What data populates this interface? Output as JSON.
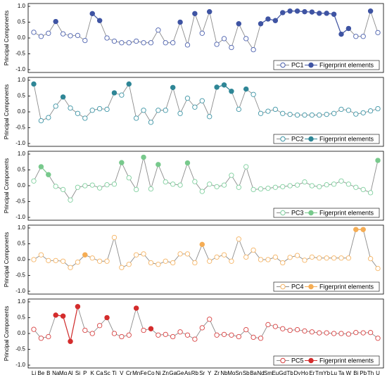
{
  "chart_data": [
    {
      "type": "line",
      "y_label": "Principal Components",
      "ylim": [
        -1,
        1
      ],
      "yticks": [
        {
          "value": -1,
          "label": "-1.0"
        },
        {
          "value": -0.5,
          "label": "-0.5"
        },
        {
          "value": 0,
          "label": "0.0"
        },
        {
          "value": 0.5,
          "label": "0.5"
        },
        {
          "value": 1,
          "label": "1.0"
        }
      ],
      "legend": "lower right",
      "series": [
        {
          "name": "PC1",
          "color": "#4a5fae",
          "values": [
            0.18,
            0.05,
            0.15,
            0.52,
            0.13,
            0.07,
            0.08,
            -0.08,
            0.77,
            0.55,
            0,
            -0.1,
            -0.15,
            -0.15,
            -0.1,
            -0.15,
            -0.15,
            0.25,
            -0.15,
            -0.15,
            0.5,
            -0.22,
            0.77,
            0.15,
            0.83,
            -0.2,
            -0.02,
            -0.3,
            0.45,
            -0.02,
            -0.37,
            0.45,
            0.6,
            0.55,
            0.8,
            0.85,
            0.85,
            0.83,
            0.82,
            0.78,
            0.78,
            0.75,
            0.12,
            0.3,
            0.05,
            0.05,
            0.85,
            0.17
          ]
        },
        {
          "name": "Figerprint elements",
          "color": "#3f54a3",
          "values": [
            null,
            null,
            null,
            0.52,
            null,
            null,
            null,
            null,
            0.77,
            0.55,
            null,
            null,
            null,
            null,
            null,
            null,
            null,
            null,
            null,
            null,
            0.5,
            null,
            0.77,
            null,
            0.83,
            null,
            null,
            null,
            0.45,
            null,
            null,
            0.45,
            0.6,
            0.55,
            0.8,
            0.85,
            0.85,
            0.83,
            0.82,
            0.78,
            0.78,
            0.75,
            0.12,
            0.3,
            null,
            null,
            0.85,
            null
          ]
        }
      ]
    },
    {
      "type": "line",
      "y_label": "Principal Components",
      "ylim": [
        -1,
        1
      ],
      "yticks": [
        {
          "value": -1,
          "label": "-1.0"
        },
        {
          "value": -0.5,
          "label": "-0.5"
        },
        {
          "value": 0,
          "label": "0.0"
        },
        {
          "value": 0.5,
          "label": "0.5"
        },
        {
          "value": 1,
          "label": "1.0"
        }
      ],
      "legend": "lower right",
      "series": [
        {
          "name": "PC2",
          "color": "#3d95a6",
          "values": [
            0.88,
            -0.28,
            -0.18,
            0.18,
            0.47,
            0.12,
            -0.05,
            -0.2,
            0.05,
            0.1,
            0.08,
            0.6,
            0.53,
            0.88,
            -0.2,
            0.05,
            -0.33,
            0.05,
            0.05,
            0.77,
            -0.05,
            0.43,
            0.15,
            0.35,
            -0.15,
            0.78,
            0.85,
            0.65,
            0.08,
            0.72,
            0.55,
            -0.05,
            0.02,
            0.08,
            -0.05,
            -0.08,
            -0.1,
            -0.1,
            -0.1,
            -0.1,
            -0.08,
            -0.05,
            0.08,
            0.05,
            -0.07,
            -0.03,
            0.03,
            0.1
          ]
        },
        {
          "name": "Figerprint elements",
          "color": "#2f8696",
          "values": [
            0.88,
            null,
            null,
            null,
            0.47,
            null,
            null,
            null,
            null,
            null,
            null,
            0.6,
            null,
            0.88,
            null,
            null,
            null,
            null,
            null,
            0.77,
            null,
            null,
            null,
            null,
            null,
            0.78,
            0.85,
            0.65,
            null,
            0.72,
            null,
            null,
            null,
            null,
            null,
            null,
            null,
            null,
            null,
            null,
            null,
            null,
            null,
            null,
            null,
            null,
            null,
            null
          ]
        }
      ]
    },
    {
      "type": "line",
      "y_label": "Principal Components",
      "ylim": [
        -1,
        1
      ],
      "yticks": [
        {
          "value": -1,
          "label": "-1.0"
        },
        {
          "value": -0.5,
          "label": "-0.5"
        },
        {
          "value": 0,
          "label": "0.0"
        },
        {
          "value": 0.5,
          "label": "0.5"
        },
        {
          "value": 1,
          "label": "1.0"
        }
      ],
      "legend": "lower right",
      "series": [
        {
          "name": "PC3",
          "color": "#7fcf9e",
          "values": [
            0.15,
            0.6,
            0.35,
            -0.02,
            -0.12,
            -0.45,
            -0.05,
            0,
            0.02,
            -0.07,
            0.03,
            0.05,
            0.73,
            0.25,
            -0.12,
            0.9,
            -0.1,
            0.67,
            0.12,
            0.05,
            0.02,
            0.72,
            0.13,
            -0.18,
            0.05,
            -0.03,
            0.02,
            0.33,
            -0.05,
            0.6,
            -0.12,
            -0.1,
            -0.08,
            -0.05,
            -0.03,
            0,
            0.02,
            0.12,
            0,
            -0.03,
            0.03,
            0.05,
            0.15,
            0.05,
            -0.05,
            -0.12,
            -0.22,
            0.8
          ]
        },
        {
          "name": "Figerprint elements",
          "color": "#78c98c",
          "values": [
            null,
            0.6,
            0.35,
            null,
            null,
            null,
            null,
            null,
            null,
            null,
            null,
            null,
            0.73,
            null,
            null,
            0.9,
            null,
            0.67,
            null,
            null,
            null,
            0.72,
            null,
            null,
            null,
            null,
            null,
            null,
            null,
            null,
            null,
            null,
            null,
            null,
            null,
            null,
            null,
            null,
            null,
            null,
            null,
            null,
            null,
            null,
            null,
            null,
            null,
            0.8
          ]
        }
      ]
    },
    {
      "type": "line",
      "y_label": "Principal Components",
      "ylim": [
        -1,
        1
      ],
      "yticks": [
        {
          "value": -1,
          "label": "-1.0"
        },
        {
          "value": -0.5,
          "label": "-0.5"
        },
        {
          "value": 0,
          "label": "0.0"
        },
        {
          "value": 0.5,
          "label": "0.5"
        },
        {
          "value": 1,
          "label": "1.0"
        }
      ],
      "legend": "lower right",
      "series": [
        {
          "name": "PC4",
          "color": "#f5b464",
          "values": [
            0,
            0.15,
            -0.03,
            -0.03,
            -0.05,
            -0.25,
            -0.08,
            0.15,
            0.05,
            -0.05,
            -0.05,
            0.7,
            -0.25,
            -0.15,
            0.15,
            0.18,
            -0.1,
            -0.15,
            -0.05,
            -0.1,
            0.18,
            0.18,
            -0.1,
            0.48,
            -0.05,
            0.08,
            0.15,
            -0.05,
            0.65,
            0.08,
            0.3,
            0,
            0,
            0.08,
            -0.1,
            0.07,
            0.13,
            -0.02,
            0.08,
            0.05,
            0.05,
            0.05,
            0.05,
            0.05,
            0.95,
            0.95,
            0.03,
            -0.28
          ]
        },
        {
          "name": "Figerprint elements",
          "color": "#f5ad55",
          "values": [
            null,
            null,
            null,
            null,
            null,
            null,
            null,
            0.15,
            null,
            null,
            null,
            null,
            null,
            null,
            null,
            null,
            null,
            null,
            null,
            null,
            null,
            null,
            null,
            0.48,
            null,
            null,
            null,
            null,
            null,
            null,
            null,
            null,
            null,
            null,
            null,
            null,
            null,
            null,
            null,
            null,
            null,
            null,
            null,
            null,
            0.95,
            0.95,
            null,
            null
          ]
        }
      ]
    },
    {
      "type": "line",
      "y_label": "Principal Components",
      "ylim": [
        -1,
        1
      ],
      "yticks": [
        {
          "value": -1,
          "label": "-1.0"
        },
        {
          "value": -0.5,
          "label": "-0.5"
        },
        {
          "value": 0,
          "label": "0.0"
        },
        {
          "value": 0.5,
          "label": "0.5"
        },
        {
          "value": 1,
          "label": "1.0"
        }
      ],
      "legend": "lower right",
      "categories": [
        "Li",
        "Be",
        "B",
        "Na",
        "Mg",
        "Al",
        "Si",
        "P",
        "K",
        "Ca",
        "Sc",
        "Ti",
        "V",
        "Cr",
        "Mn",
        "Fe",
        "Co",
        "Ni",
        "Zn",
        "Ga",
        "Ge",
        "As",
        "Rb",
        "Sr",
        "Y",
        "Zr",
        "Nb",
        "Mo",
        "Sn",
        "Sb",
        "Ba",
        "Nd",
        "Sm",
        "Eu",
        "Gd",
        "Tb",
        "Dy",
        "Ho",
        "Er",
        "Tm",
        "Yb",
        "Lu",
        "Ta",
        "W",
        "Bi",
        "Pb",
        "Th",
        "U"
      ],
      "series": [
        {
          "name": "PC5",
          "color": "#d84040",
          "values": [
            0.13,
            -0.15,
            -0.1,
            0.58,
            0.55,
            -0.25,
            0.85,
            0.1,
            0,
            0.25,
            0.5,
            0,
            -0.1,
            -0.05,
            0.8,
            0.1,
            0.15,
            -0.05,
            -0.03,
            -0.1,
            0.05,
            -0.05,
            -0.18,
            0.18,
            0.45,
            -0.05,
            -0.03,
            -0.05,
            -0.1,
            0.12,
            -0.12,
            -0.15,
            0.28,
            0.22,
            0.15,
            0.1,
            0.12,
            0.08,
            0.05,
            0.02,
            0.02,
            0,
            0,
            -0.02,
            0.03,
            0.02,
            0.03,
            -0.15
          ]
        },
        {
          "name": "Figerprint elements",
          "color": "#d42c2c",
          "values": [
            null,
            null,
            null,
            0.58,
            0.55,
            -0.25,
            0.85,
            null,
            null,
            null,
            0.5,
            null,
            null,
            null,
            0.8,
            null,
            0.15,
            null,
            null,
            null,
            null,
            null,
            null,
            null,
            null,
            null,
            null,
            null,
            null,
            null,
            null,
            null,
            null,
            null,
            null,
            null,
            null,
            null,
            null,
            null,
            null,
            null,
            null,
            null,
            null,
            null,
            null,
            null
          ]
        }
      ]
    }
  ]
}
